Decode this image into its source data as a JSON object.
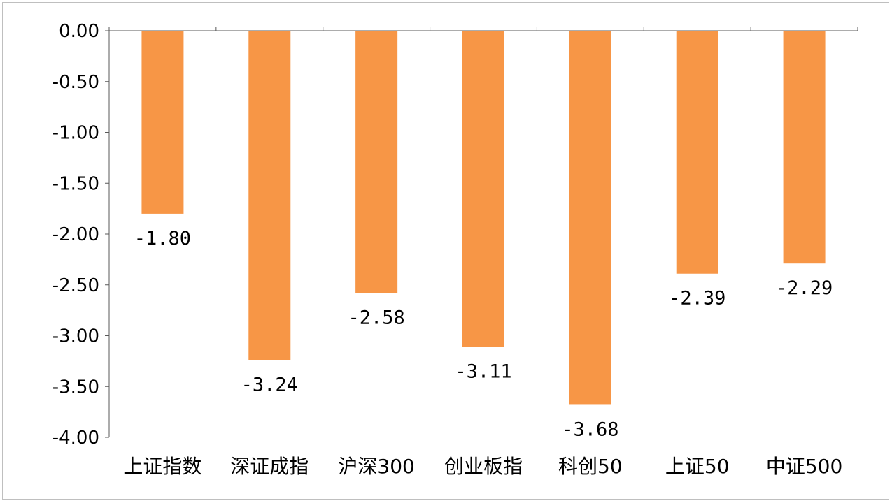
{
  "chart_data": {
    "type": "bar",
    "categories": [
      "上证指数",
      "深证成指",
      "沪深300",
      "创业板指",
      "科创50",
      "上证50",
      "中证500"
    ],
    "values": [
      -1.8,
      -3.24,
      -2.58,
      -3.11,
      -3.68,
      -2.39,
      -2.29
    ],
    "data_labels": [
      "-1.80",
      "-3.24",
      "-2.58",
      "-3.11",
      "-3.68",
      "-2.39",
      "-2.29"
    ],
    "y_ticks": [
      0,
      -0.5,
      -1,
      -1.5,
      -2,
      -2.5,
      -3,
      -3.5,
      -4
    ],
    "y_tick_labels": [
      "0.00",
      "-0.50",
      "-1.00",
      "-1.50",
      "-2.00",
      "-2.50",
      "-3.00",
      "-3.50",
      "-4.00"
    ],
    "ylim": [
      -4,
      0
    ],
    "grid": false,
    "legend": "none",
    "colors": {
      "bar": "#F79646",
      "axis": "#595959",
      "text": "#000000",
      "border": "#BFBFBF"
    }
  }
}
